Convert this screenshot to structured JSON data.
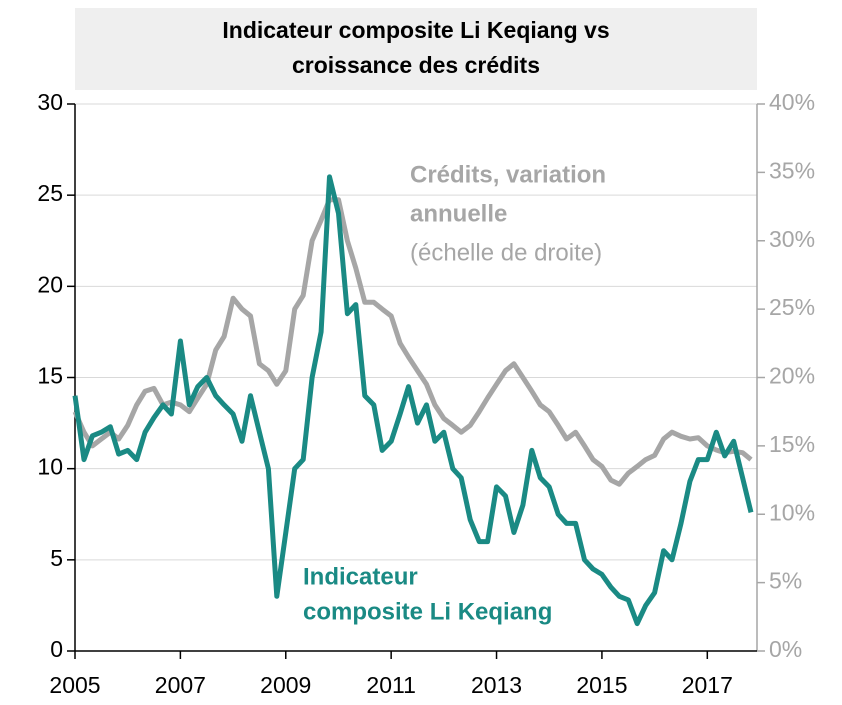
{
  "chart_data": {
    "type": "line",
    "title": [
      "Indicateur composite Li Keqiang vs",
      "croissance des crédits"
    ],
    "x": [
      2005.0,
      2005.17,
      2005.33,
      2005.5,
      2005.67,
      2005.83,
      2006.0,
      2006.17,
      2006.33,
      2006.5,
      2006.67,
      2006.83,
      2007.0,
      2007.17,
      2007.33,
      2007.5,
      2007.67,
      2007.83,
      2008.0,
      2008.17,
      2008.33,
      2008.5,
      2008.67,
      2008.83,
      2009.0,
      2009.17,
      2009.33,
      2009.5,
      2009.67,
      2009.83,
      2010.0,
      2010.17,
      2010.33,
      2010.5,
      2010.67,
      2010.83,
      2011.0,
      2011.17,
      2011.33,
      2011.5,
      2011.67,
      2011.83,
      2012.0,
      2012.17,
      2012.33,
      2012.5,
      2012.67,
      2012.83,
      2013.0,
      2013.17,
      2013.33,
      2013.5,
      2013.67,
      2013.83,
      2014.0,
      2014.17,
      2014.33,
      2014.5,
      2014.67,
      2014.83,
      2015.0,
      2015.17,
      2015.33,
      2015.5,
      2015.67,
      2015.83,
      2016.0,
      2016.17,
      2016.33,
      2016.5,
      2016.67,
      2016.83,
      2017.0,
      2017.17,
      2017.33,
      2017.5,
      2017.67,
      2017.83
    ],
    "series": [
      {
        "color": "#1a8a84",
        "axis": "y",
        "values": [
          14,
          10.5,
          11.8,
          12,
          12.3,
          10.8,
          11,
          10.5,
          12,
          12.8,
          13.5,
          13,
          17,
          13.5,
          14.5,
          15,
          14,
          13.5,
          13,
          11.5,
          14,
          12,
          10,
          3,
          6.5,
          10,
          10.5,
          15,
          17.5,
          26,
          24,
          18.5,
          19,
          14,
          13.5,
          11,
          11.5,
          13,
          14.5,
          12.5,
          13.5,
          11.5,
          12,
          10,
          9.5,
          7.2,
          6,
          6,
          9,
          8.5,
          6.5,
          8,
          11,
          9.5,
          9,
          7.5,
          7,
          7,
          5,
          4.5,
          4.2,
          3.5,
          3,
          2.8,
          1.5,
          2.5,
          3.2,
          5.5,
          5,
          7,
          9.3,
          10.5,
          10.5,
          12,
          10.7,
          11.5,
          9.5,
          7.6
        ]
      },
      {
        "color": "#a6a6a6",
        "axis": "y2",
        "values": [
          17.5,
          16,
          15,
          15.5,
          16,
          15.5,
          16.5,
          18,
          19,
          19.2,
          18,
          18.2,
          18,
          17.5,
          18.5,
          19.5,
          22,
          23,
          25.8,
          25,
          24.5,
          21,
          20.5,
          19.5,
          20.5,
          25,
          26,
          30,
          31.5,
          33,
          33,
          30,
          28,
          25.5,
          25.5,
          25,
          24.5,
          22.5,
          21.5,
          20.5,
          19.5,
          18,
          17,
          16.5,
          16,
          16.5,
          17.5,
          18.5,
          19.5,
          20.5,
          21,
          20,
          19,
          18,
          17.5,
          16.5,
          15.5,
          16,
          15,
          14,
          13.5,
          12.5,
          12.2,
          13,
          13.5,
          14,
          14.3,
          15.5,
          16,
          15.7,
          15.5,
          15.6,
          15,
          14.7,
          14.5,
          14.6,
          14.5,
          14
        ]
      }
    ],
    "xlim": [
      2005,
      2018
    ],
    "xticks": [
      2005,
      2007,
      2009,
      2011,
      2013,
      2015,
      2017
    ],
    "ylim": [
      0,
      30
    ],
    "yticks": [
      0,
      5,
      10,
      15,
      20,
      25,
      30
    ],
    "y2lim": [
      0,
      40
    ],
    "y2ticks": [
      {
        "value": 0,
        "label": "0%"
      },
      {
        "value": 5,
        "label": "5%"
      },
      {
        "value": 10,
        "label": "10%"
      },
      {
        "value": 15,
        "label": "15%"
      },
      {
        "value": 20,
        "label": "20%"
      },
      {
        "value": 25,
        "label": "25%"
      },
      {
        "value": 30,
        "label": "30%"
      },
      {
        "value": 35,
        "label": "35%"
      },
      {
        "value": 40,
        "label": "40%"
      }
    ],
    "grid": true,
    "annotations": [
      {
        "text": "Crédits, variation",
        "color": "#a6a6a6",
        "bold": true
      },
      {
        "text": "annuelle",
        "color": "#a6a6a6",
        "bold": true
      },
      {
        "text": "(échelle de droite)",
        "color": "#a6a6a6",
        "bold": false
      },
      {
        "text": "Indicateur",
        "color": "#1a8a84",
        "bold": true
      },
      {
        "text": "composite Li Keqiang",
        "color": "#1a8a84",
        "bold": true
      }
    ]
  }
}
